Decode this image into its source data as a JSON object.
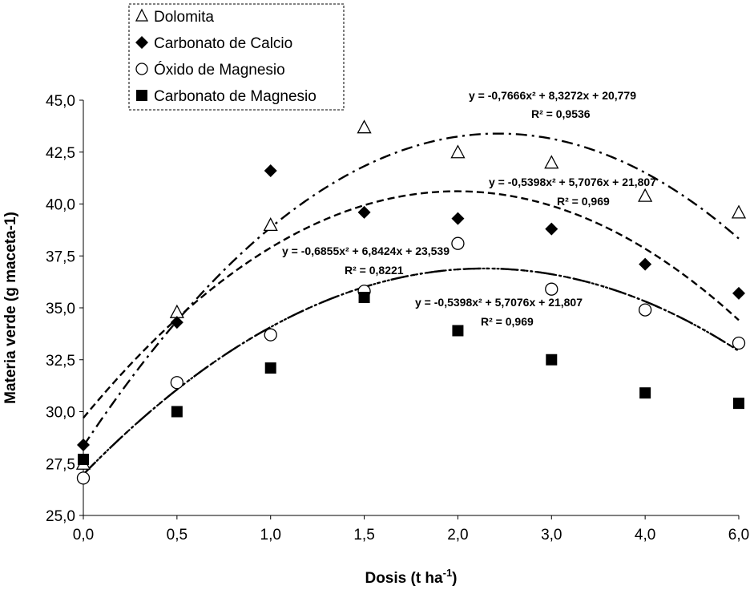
{
  "chart_data": {
    "type": "scatter",
    "title": "",
    "xlabel": "Dosis (t ha",
    "xlabel_sup": "-1",
    "xlabel_end": ")",
    "ylabel": "Materia verde (g maceta-1)",
    "ylim": [
      25.0,
      45.0
    ],
    "y_ticks": [
      25.0,
      27.5,
      30.0,
      32.5,
      35.0,
      37.5,
      40.0,
      42.5,
      45.0
    ],
    "y_tick_labels": [
      "25,0",
      "27,5",
      "30,0",
      "32,5",
      "35,0",
      "37,5",
      "40,0",
      "42,5",
      "45,0"
    ],
    "categories": [
      "0,0",
      "0,5",
      "1,0",
      "1,5",
      "2,0",
      "3,0",
      "4,0",
      "6,0"
    ],
    "legend_position": "top-left",
    "series": [
      {
        "name": "Dolomita",
        "marker": "triangle-open",
        "values": [
          27.5,
          34.8,
          39.0,
          43.7,
          42.5,
          42.0,
          40.4,
          39.6
        ],
        "trend_style": "dash-dot",
        "trend": {
          "a": -0.7666,
          "b": 8.3272,
          "c": 20.779
        },
        "equation": "y = -0,7666x² + 8,3272x + 20,779",
        "r2": "R² = 0,9536"
      },
      {
        "name": "Carbonato de Calcio",
        "marker": "diamond-filled",
        "values": [
          28.4,
          34.3,
          41.6,
          39.6,
          39.3,
          38.8,
          37.1,
          35.7
        ],
        "trend_style": "long-dash-dot-dot",
        "trend": {
          "a": -0.5398,
          "b": 5.7076,
          "c": 21.807
        },
        "equation": "y = -0,5398x² + 5,7076x + 21,807",
        "r2": "R² = 0,969"
      },
      {
        "name": "Óxido de Magnesio",
        "marker": "circle-open",
        "values": [
          26.8,
          31.4,
          33.7,
          35.8,
          38.1,
          35.9,
          34.9,
          33.3
        ],
        "trend_style": "dash",
        "trend": {
          "a": -0.6855,
          "b": 6.8424,
          "c": 23.539
        },
        "equation": "y = -0,6855x² + 6,8424x + 23,539",
        "r2": "R² = 0,8221"
      },
      {
        "name": "Carbonato de Magnesio",
        "marker": "square-filled",
        "values": [
          27.7,
          30.0,
          32.1,
          35.5,
          33.9,
          32.5,
          30.9,
          30.4
        ],
        "trend_style": "dot",
        "trend": {
          "a": -0.5398,
          "b": 5.7076,
          "c": 21.807
        },
        "equation": "y = -0,5398x² + 5,7076x + 21,807",
        "r2": "R² = 0,969"
      }
    ]
  }
}
